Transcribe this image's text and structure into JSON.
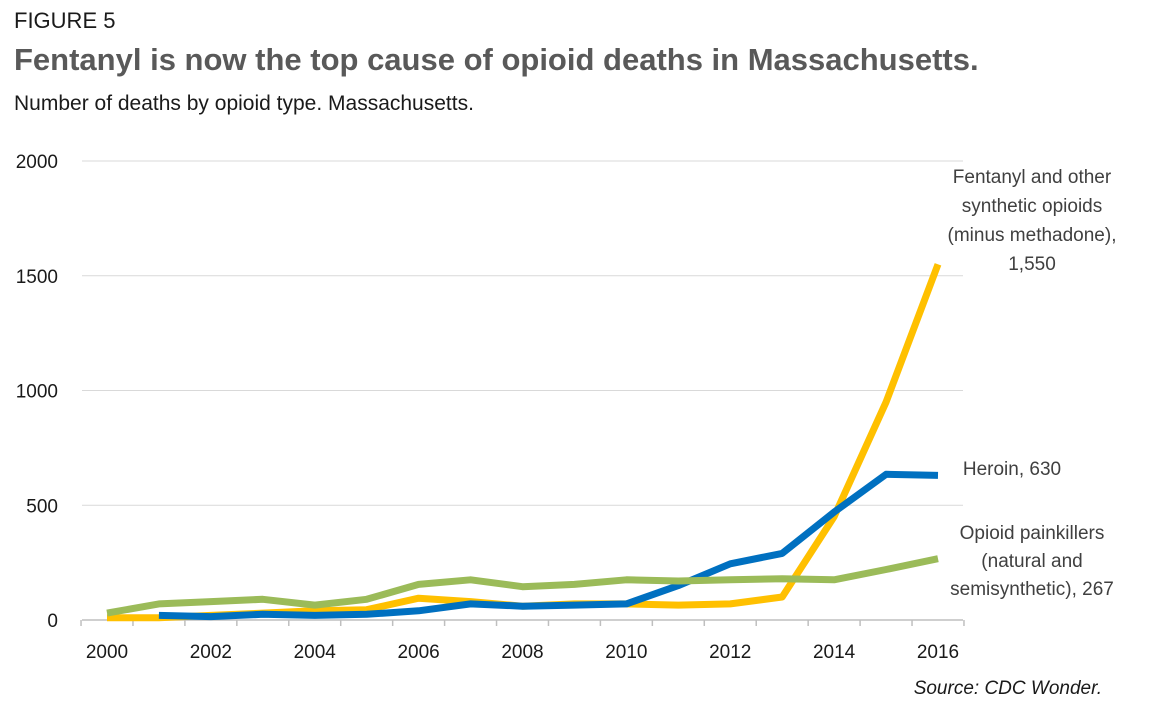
{
  "figure_label": "FIGURE 5",
  "title": "Fentanyl is now the top cause of opioid deaths in Massachusetts.",
  "subtitle": "Number of deaths by opioid type. Massachusetts.",
  "source": "Source: CDC Wonder.",
  "chart_data": {
    "type": "line",
    "x": [
      2000,
      2001,
      2002,
      2003,
      2004,
      2005,
      2006,
      2007,
      2008,
      2009,
      2010,
      2011,
      2012,
      2013,
      2014,
      2015,
      2016
    ],
    "xticks": [
      "2000",
      "2002",
      "2004",
      "2006",
      "2008",
      "2010",
      "2012",
      "2014",
      "2016"
    ],
    "yticks": [
      "0",
      "500",
      "1000",
      "1500",
      "2000"
    ],
    "ylim": [
      0,
      2000
    ],
    "grid": "horizontal",
    "legend": "none",
    "series": [
      {
        "key": "fentanyl",
        "color": "#FFC000",
        "values": [
          10,
          10,
          20,
          30,
          40,
          45,
          95,
          80,
          60,
          70,
          70,
          65,
          70,
          100,
          450,
          950,
          1550
        ],
        "label": [
          "Fentanyl and other",
          "synthetic opioids",
          "(minus methadone),",
          "1,550"
        ]
      },
      {
        "key": "heroin",
        "color": "#0070C0",
        "values": [
          null,
          20,
          15,
          25,
          20,
          25,
          40,
          70,
          60,
          65,
          70,
          150,
          245,
          290,
          470,
          635,
          630
        ],
        "label": [
          "Heroin,  630"
        ]
      },
      {
        "key": "painkillers",
        "color": "#9BBB59",
        "values": [
          30,
          70,
          80,
          90,
          65,
          90,
          155,
          175,
          145,
          155,
          175,
          170,
          175,
          180,
          175,
          220,
          267
        ],
        "label": [
          "Opioid painkillers",
          "(natural and",
          "semisynthetic),  267"
        ]
      }
    ]
  }
}
